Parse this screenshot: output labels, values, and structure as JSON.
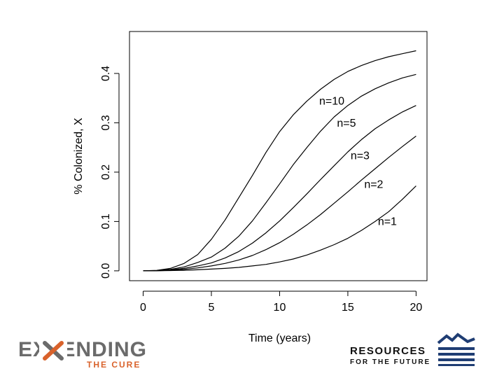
{
  "chart_data": {
    "type": "line",
    "title": "",
    "xlabel": "Time (years)",
    "ylabel": "% Colonized, X",
    "xlim": [
      -1,
      20.8
    ],
    "ylim": [
      -0.02,
      0.485
    ],
    "xticks": [
      0,
      5,
      10,
      15,
      20
    ],
    "xtick_labels": [
      "0",
      "5",
      "10",
      "15",
      "20"
    ],
    "yticks": [
      0.0,
      0.1,
      0.2,
      0.3,
      0.4
    ],
    "ytick_labels": [
      "0.0",
      "0.1",
      "0.2",
      "0.3",
      "0.4"
    ],
    "grid": false,
    "legend": "none",
    "series": [
      {
        "name": "n=10",
        "x": [
          0,
          1,
          2,
          3,
          4,
          5,
          6,
          7,
          8,
          9,
          10,
          11,
          12,
          13,
          14,
          15,
          16,
          17,
          18,
          19,
          20
        ],
        "y": [
          0,
          0.001,
          0.005,
          0.015,
          0.033,
          0.064,
          0.103,
          0.148,
          0.193,
          0.24,
          0.282,
          0.316,
          0.344,
          0.368,
          0.388,
          0.404,
          0.416,
          0.426,
          0.434,
          0.44,
          0.446
        ]
      },
      {
        "name": "n=5",
        "x": [
          0,
          1,
          2,
          3,
          4,
          5,
          6,
          7,
          8,
          9,
          10,
          11,
          12,
          13,
          14,
          15,
          16,
          17,
          18,
          19,
          20
        ],
        "y": [
          0,
          0.0005,
          0.003,
          0.008,
          0.017,
          0.028,
          0.046,
          0.07,
          0.101,
          0.138,
          0.176,
          0.215,
          0.25,
          0.283,
          0.312,
          0.335,
          0.354,
          0.369,
          0.381,
          0.391,
          0.398
        ]
      },
      {
        "name": "n=3",
        "x": [
          0,
          1,
          2,
          3,
          4,
          5,
          6,
          7,
          8,
          9,
          10,
          11,
          12,
          13,
          14,
          15,
          16,
          17,
          18,
          19,
          20
        ],
        "y": [
          0,
          0.0003,
          0.002,
          0.005,
          0.01,
          0.016,
          0.026,
          0.039,
          0.056,
          0.077,
          0.101,
          0.128,
          0.156,
          0.185,
          0.213,
          0.241,
          0.266,
          0.288,
          0.306,
          0.322,
          0.335
        ]
      },
      {
        "name": "n=2",
        "x": [
          0,
          1,
          2,
          3,
          4,
          5,
          6,
          7,
          8,
          9,
          10,
          11,
          12,
          13,
          14,
          15,
          16,
          17,
          18,
          19,
          20
        ],
        "y": [
          0,
          0.0002,
          0.001,
          0.003,
          0.006,
          0.01,
          0.015,
          0.022,
          0.031,
          0.043,
          0.057,
          0.074,
          0.093,
          0.114,
          0.137,
          0.16,
          0.184,
          0.207,
          0.23,
          0.252,
          0.273
        ]
      },
      {
        "name": "n=1",
        "x": [
          0,
          1,
          2,
          3,
          4,
          5,
          6,
          7,
          8,
          9,
          10,
          11,
          12,
          13,
          14,
          15,
          16,
          17,
          18,
          19,
          20
        ],
        "y": [
          0,
          0.0001,
          0.0005,
          0.0012,
          0.0022,
          0.0035,
          0.005,
          0.007,
          0.01,
          0.013,
          0.018,
          0.024,
          0.032,
          0.042,
          0.053,
          0.066,
          0.082,
          0.1,
          0.12,
          0.145,
          0.172
        ]
      }
    ],
    "label_positions": [
      {
        "text": "n=10",
        "x": 12.9,
        "y": 0.337
      },
      {
        "text": "n=5",
        "x": 14.2,
        "y": 0.292
      },
      {
        "text": "n=3",
        "x": 15.2,
        "y": 0.226
      },
      {
        "text": "n=2",
        "x": 16.2,
        "y": 0.168
      },
      {
        "text": "n=1",
        "x": 17.2,
        "y": 0.093
      }
    ]
  },
  "logos": {
    "left_word": "EXTENDING",
    "left_sub": "THE CURE",
    "right_line1": "RESOURCES",
    "right_line2": "FOR THE FUTURE",
    "left_accent": "#d9622b",
    "right_accent": "#1f3d73"
  }
}
